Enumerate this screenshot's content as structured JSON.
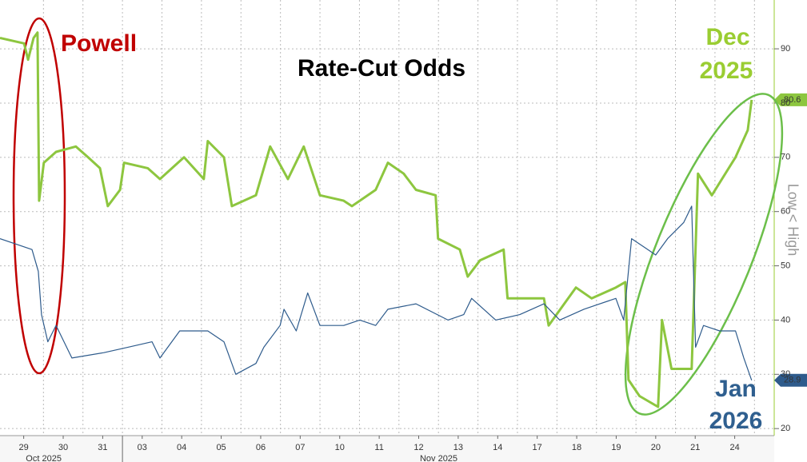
{
  "chart_data": {
    "type": "line",
    "title": "Rate-Cut Odds",
    "annotations": {
      "powell": "Powell",
      "dec": [
        "Dec",
        "2025"
      ],
      "jan": [
        "Jan",
        "2026"
      ]
    },
    "ylabel": "Low < High",
    "xlim": [
      -0.6,
      19.0
    ],
    "xticks": [
      {
        "value": 0,
        "label": "29"
      },
      {
        "value": 1,
        "label": "30"
      },
      {
        "value": 2,
        "label": "31"
      },
      {
        "value": 3,
        "label": "03"
      },
      {
        "value": 4,
        "label": "04"
      },
      {
        "value": 5,
        "label": "05"
      },
      {
        "value": 6,
        "label": "06"
      },
      {
        "value": 7,
        "label": "07"
      },
      {
        "value": 8,
        "label": "10"
      },
      {
        "value": 9,
        "label": "11"
      },
      {
        "value": 10,
        "label": "12"
      },
      {
        "value": 11,
        "label": "13"
      },
      {
        "value": 12,
        "label": "14"
      },
      {
        "value": 13,
        "label": "17"
      },
      {
        "value": 14,
        "label": "18"
      },
      {
        "value": 15,
        "label": "19"
      },
      {
        "value": 16,
        "label": "20"
      },
      {
        "value": 17,
        "label": "21"
      },
      {
        "value": 18,
        "label": "24"
      }
    ],
    "months": [
      {
        "value": 0,
        "label": "Oct 2025"
      },
      {
        "value": 10,
        "label": "Nov 2025"
      }
    ],
    "ylim": [
      18.7,
      99
    ],
    "yticks": [
      20,
      30,
      40,
      50,
      60,
      70,
      80,
      90
    ],
    "grid": true,
    "series": [
      {
        "name": "Dec 2025",
        "color": "#8dc63f",
        "x": [
          -0.6,
          0.01,
          0.11,
          0.25,
          0.35,
          0.39,
          0.51,
          0.82,
          1.32,
          1.63,
          1.93,
          2.13,
          2.44,
          2.54,
          3.14,
          3.45,
          4.06,
          4.56,
          4.66,
          5.07,
          5.27,
          5.88,
          6.24,
          6.69,
          7.09,
          7.5,
          8.1,
          8.31,
          8.91,
          9.22,
          9.62,
          9.93,
          10.43,
          10.49,
          11.04,
          11.24,
          11.55,
          12.15,
          12.25,
          13.17,
          13.29,
          13.98,
          14.38,
          14.99,
          15.23,
          15.31,
          15.59,
          16.06,
          16.16,
          16.4,
          16.91,
          17.07,
          17.42,
          18.02,
          18.33,
          18.43
        ],
        "values": [
          92,
          91,
          88,
          92,
          93,
          62,
          69,
          71,
          72,
          70,
          68,
          61,
          64,
          69,
          68,
          66,
          70,
          66,
          73,
          70,
          61,
          63,
          72,
          66,
          72,
          63,
          62,
          61,
          64,
          69,
          67,
          64,
          63,
          55,
          53,
          48,
          51,
          53,
          44,
          44,
          39,
          46,
          44,
          46,
          47,
          29,
          26,
          24,
          40,
          31,
          31,
          67,
          63,
          70,
          75,
          80.6
        ]
      },
      {
        "name": "Jan 2026",
        "color": "#2e5b8c",
        "x": [
          -0.6,
          0.21,
          0.37,
          0.45,
          0.61,
          0.82,
          1.22,
          2.03,
          2.64,
          3.25,
          3.45,
          3.95,
          4.66,
          5.07,
          5.37,
          5.88,
          6.08,
          6.49,
          6.59,
          6.9,
          7.19,
          7.5,
          8.1,
          8.51,
          8.91,
          9.22,
          9.93,
          10.74,
          11.14,
          11.34,
          11.95,
          12.56,
          13.17,
          13.57,
          14.18,
          14.99,
          15.19,
          15.39,
          15.8,
          16.0,
          16.3,
          16.71,
          16.91,
          17.01,
          17.21,
          17.62,
          18.02,
          18.23,
          18.43
        ],
        "values": [
          55,
          53,
          49,
          41,
          36,
          39,
          33,
          34,
          35,
          36,
          33,
          38,
          38,
          36,
          30,
          32,
          35,
          39,
          42,
          38,
          45,
          39,
          39,
          40,
          39,
          42,
          43,
          40,
          41,
          44,
          40,
          41,
          43,
          40,
          42,
          44,
          40,
          55,
          53,
          52,
          55,
          58,
          61,
          35,
          39,
          38,
          38,
          33,
          28.9
        ]
      }
    ]
  }
}
